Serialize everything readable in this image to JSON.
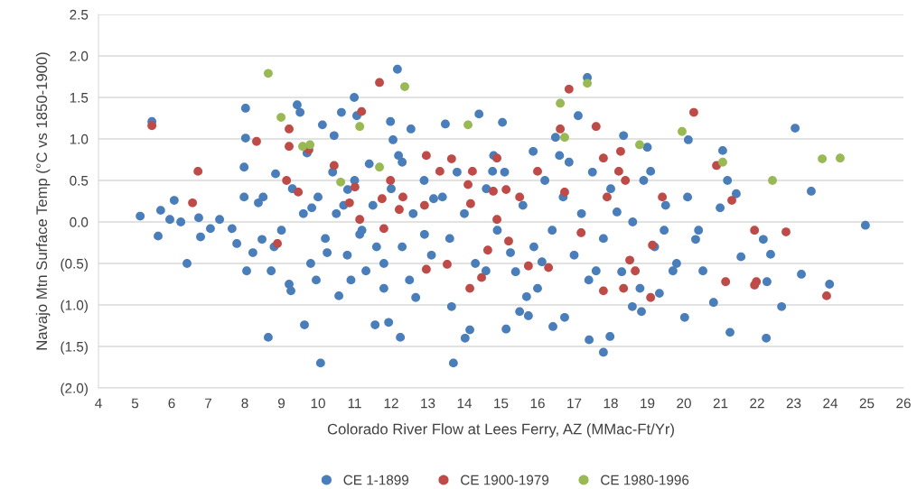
{
  "chart_data": {
    "type": "scatter",
    "xlabel": "Colorado River Flow at Lees Ferry, AZ (MMac-Ft/Yr)",
    "ylabel": "Navajo Mtn Surface Temp (°C vs 1850-1900)",
    "xlim": [
      4,
      26
    ],
    "xticks": [
      4,
      5,
      6,
      7,
      8,
      9,
      10,
      11,
      12,
      13,
      14,
      15,
      16,
      17,
      18,
      19,
      20,
      21,
      22,
      23,
      24,
      25,
      26
    ],
    "ylim": [
      -2.0,
      2.5
    ],
    "yticks": [
      {
        "value": -2.0,
        "label": "(2.0)"
      },
      {
        "value": -1.5,
        "label": "(1.5)"
      },
      {
        "value": -1.0,
        "label": "(1.0)"
      },
      {
        "value": -0.5,
        "label": "(0.5)"
      },
      {
        "value": 0.0,
        "label": "0.0"
      },
      {
        "value": 0.5,
        "label": "0.5"
      },
      {
        "value": 1.0,
        "label": "1.0"
      },
      {
        "value": 1.5,
        "label": "1.5"
      },
      {
        "value": 2.0,
        "label": "2.0"
      },
      {
        "value": 2.5,
        "label": "2.5"
      }
    ],
    "grid": "y",
    "legend": "bottom",
    "marker": "circle",
    "series": [
      {
        "name": "CE 1-1899",
        "color": "#4a7ebb",
        "x": [
          5.14,
          5.46,
          5.63,
          5.7,
          5.95,
          6.07,
          6.25,
          6.42,
          6.74,
          6.79,
          7.06,
          7.31,
          7.65,
          7.78,
          8.02,
          8.02,
          7.98,
          7.98,
          8.05,
          8.64,
          8.72,
          8.84,
          8.37,
          8.47,
          8.22,
          9.21,
          9.26,
          9.43,
          9.51,
          9.63,
          9.7,
          9.83,
          9.95,
          10.07,
          10.12,
          10.25,
          10.44,
          10.57,
          10.64,
          10.81,
          10.99,
          11.06,
          11.14,
          11.31,
          11.56,
          11.8,
          11.93,
          11.98,
          12.05,
          12.17,
          12.25,
          12.3,
          12.54,
          12.67,
          12.91,
          13.16,
          13.48,
          13.65,
          13.7,
          14.02,
          14.15,
          14.4,
          14.59,
          14.77,
          15.04,
          15.14,
          15.26,
          15.51,
          15.75,
          15.88,
          16.12,
          16.42,
          16.49,
          16.74,
          16.86,
          17.11,
          17.36,
          17.41,
          17.6,
          17.8,
          17.98,
          18.17,
          18.35,
          18.59,
          18.84,
          19.09,
          19.33,
          19.46,
          19.7,
          20.02,
          20.12,
          20.32,
          20.52,
          20.81,
          20.99,
          21.06,
          21.19,
          21.26,
          21.43,
          21.56,
          22.17,
          22.25,
          22.37,
          22.67,
          23.04,
          23.21,
          23.48,
          23.98,
          24.96,
          22.27,
          10.0,
          10.2,
          10.5,
          10.8,
          11.0,
          11.2,
          11.5,
          11.8,
          12.0,
          12.3,
          12.6,
          12.9,
          13.1,
          9.8,
          9.6,
          10.4,
          11.4,
          12.2,
          13.4,
          13.6,
          14.0,
          14.3,
          14.6,
          14.9,
          15.1,
          15.4,
          15.6,
          15.9,
          16.2,
          16.4,
          16.7,
          17.0,
          17.2,
          17.5,
          17.8,
          18.0,
          18.3,
          18.6,
          18.9,
          19.2,
          19.5,
          19.8,
          20.1,
          20.4,
          9.3,
          9.0,
          8.5,
          8.8,
          10.9,
          12.5,
          16.0,
          17.4,
          14.8,
          16.6,
          19.0,
          13.8,
          11.6,
          10.7,
          15.7,
          18.8
        ],
        "values": [
          0.07,
          1.21,
          -0.17,
          0.14,
          0.03,
          0.26,
          0.0,
          -0.5,
          0.05,
          -0.18,
          -0.08,
          0.03,
          -0.08,
          -0.26,
          1.37,
          1.01,
          0.66,
          0.3,
          -0.59,
          -1.39,
          -0.59,
          0.58,
          0.23,
          -0.21,
          -0.37,
          -0.75,
          -0.83,
          1.41,
          1.32,
          -1.24,
          0.83,
          0.17,
          -0.7,
          -1.7,
          1.17,
          -0.37,
          1.04,
          -0.89,
          1.32,
          0.39,
          1.5,
          1.28,
          -0.15,
          -0.59,
          -1.24,
          -0.8,
          -1.21,
          1.21,
          0.99,
          1.84,
          -1.39,
          0.72,
          1.12,
          -0.91,
          -0.15,
          0.28,
          1.18,
          -1.02,
          -1.7,
          -1.4,
          -1.3,
          1.3,
          -0.59,
          0.61,
          1.2,
          -1.29,
          -0.37,
          -1.08,
          -1.13,
          0.85,
          -0.48,
          -1.26,
          1.02,
          -1.15,
          0.72,
          1.28,
          1.74,
          -1.42,
          -0.59,
          -1.57,
          -1.38,
          0.12,
          1.04,
          -1.02,
          -1.08,
          0.61,
          -0.86,
          -0.1,
          -0.59,
          -1.15,
          0.99,
          -0.21,
          -0.59,
          -0.97,
          0.17,
          0.86,
          0.5,
          -1.33,
          0.34,
          -0.42,
          -0.21,
          -1.4,
          -0.39,
          -1.02,
          1.13,
          -0.63,
          0.37,
          -0.75,
          -0.04,
          -0.72,
          0.3,
          -0.2,
          0.1,
          -0.4,
          0.5,
          -0.1,
          0.2,
          -0.5,
          0.4,
          -0.3,
          0.1,
          0.5,
          -0.4,
          -0.5,
          0.1,
          0.6,
          0.7,
          0.8,
          0.3,
          -0.2,
          0.1,
          -0.5,
          0.4,
          -0.1,
          0.6,
          -0.6,
          0.2,
          -0.3,
          0.5,
          -0.1,
          0.3,
          -0.4,
          0.1,
          0.6,
          -0.2,
          0.4,
          -0.6,
          0.0,
          0.5,
          -0.3,
          0.2,
          -0.5,
          0.3,
          -0.1,
          0.4,
          -0.1,
          0.3,
          -0.3,
          -0.7,
          -0.7,
          -0.8,
          -0.7,
          0.8,
          0.8,
          0.9,
          0.6,
          -0.3,
          0.2,
          -0.9,
          -0.8
        ]
      },
      {
        "name": "CE 1900-1979",
        "color": "#be4b48",
        "x": [
          5.46,
          6.57,
          6.72,
          8.32,
          8.89,
          9.21,
          9.14,
          9.21,
          9.46,
          9.75,
          10.44,
          10.86,
          11.14,
          11.19,
          11.01,
          11.68,
          11.75,
          11.8,
          11.98,
          12.22,
          12.32,
          12.91,
          12.96,
          12.96,
          13.33,
          13.53,
          13.65,
          14.1,
          14.15,
          14.22,
          14.17,
          14.47,
          14.64,
          14.79,
          14.89,
          14.89,
          15.14,
          15.21,
          15.51,
          15.75,
          16.0,
          16.3,
          16.62,
          16.74,
          16.86,
          17.19,
          17.6,
          17.8,
          17.8,
          17.9,
          18.22,
          18.27,
          18.35,
          18.52,
          18.4,
          18.67,
          19.09,
          19.14,
          19.41,
          20.27,
          20.89,
          21.14,
          21.31,
          21.93,
          21.98,
          22.79,
          23.9,
          21.93
        ],
        "values": [
          1.16,
          0.23,
          0.61,
          0.97,
          -0.26,
          1.12,
          0.5,
          0.91,
          0.36,
          0.87,
          0.68,
          0.23,
          0.03,
          1.33,
          0.42,
          1.68,
          0.28,
          -0.08,
          0.5,
          0.15,
          0.3,
          0.2,
          0.8,
          -0.57,
          0.61,
          -0.51,
          0.76,
          0.45,
          -0.8,
          0.61,
          0.22,
          -0.67,
          -0.34,
          0.37,
          0.03,
          0.77,
          0.39,
          -0.23,
          0.3,
          -0.53,
          0.61,
          -0.55,
          1.12,
          0.36,
          1.6,
          -0.13,
          1.15,
          0.77,
          -0.83,
          0.3,
          0.61,
          0.85,
          -0.8,
          -0.46,
          0.5,
          -0.59,
          -0.91,
          -0.28,
          0.3,
          1.32,
          0.68,
          -0.72,
          0.26,
          -0.1,
          -0.72,
          -0.12,
          -0.89,
          -0.76
        ]
      },
      {
        "name": "CE 1980-1996",
        "color": "#98b954",
        "x": [
          8.64,
          8.99,
          9.58,
          9.78,
          10.62,
          11.14,
          11.68,
          12.37,
          14.1,
          16.62,
          16.74,
          17.36,
          18.79,
          19.95,
          21.06,
          22.42,
          23.78,
          24.27
        ],
        "values": [
          1.79,
          1.26,
          0.91,
          0.93,
          0.48,
          1.15,
          0.66,
          1.63,
          1.17,
          1.43,
          1.02,
          1.67,
          0.93,
          1.09,
          0.72,
          0.5,
          0.76,
          0.77
        ]
      }
    ]
  }
}
